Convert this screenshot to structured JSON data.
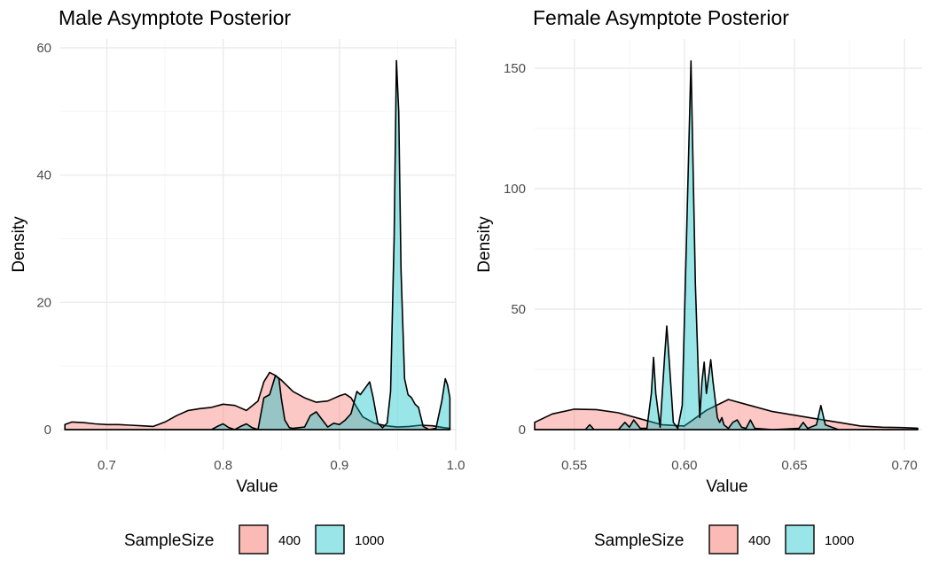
{
  "chart_data": [
    {
      "type": "area",
      "title": "Male Asymptote Posterior",
      "xlabel": "Value",
      "ylabel": "Density",
      "xlim": [
        0.66,
        1.0
      ],
      "ylim": [
        0,
        60
      ],
      "x_ticks": [
        0.7,
        0.8,
        0.9,
        1.0
      ],
      "x_tick_labels": [
        "0.7",
        "0.8",
        "0.9",
        "1.0"
      ],
      "y_ticks": [
        0,
        20,
        40,
        60
      ],
      "y_tick_labels": [
        "0",
        "20",
        "40",
        "60"
      ],
      "grid": true,
      "legend": {
        "title": "SampleSize",
        "position": "bottom"
      },
      "series": [
        {
          "name": "400",
          "color": "#F8766D",
          "x": [
            0.664,
            0.67,
            0.68,
            0.69,
            0.7,
            0.71,
            0.72,
            0.73,
            0.74,
            0.75,
            0.76,
            0.77,
            0.78,
            0.79,
            0.8,
            0.81,
            0.82,
            0.83,
            0.835,
            0.84,
            0.845,
            0.85,
            0.86,
            0.87,
            0.88,
            0.89,
            0.9,
            0.905,
            0.91,
            0.915,
            0.92,
            0.93,
            0.94,
            0.95,
            0.96,
            0.97,
            0.98,
            0.99,
            0.995
          ],
          "values": [
            0.8,
            1.2,
            1.1,
            0.9,
            0.8,
            0.8,
            0.7,
            0.6,
            0.5,
            1.2,
            2.2,
            3.0,
            3.3,
            3.5,
            4.0,
            3.8,
            3.0,
            4.5,
            7.5,
            9.0,
            8.5,
            7.8,
            6.0,
            5.0,
            4.3,
            4.5,
            5.3,
            5.6,
            5.0,
            3.5,
            2.0,
            1.0,
            0.6,
            0.4,
            0.5,
            0.7,
            0.6,
            0.3,
            0.2
          ]
        },
        {
          "name": "1000",
          "color": "#00BFC4",
          "x": [
            0.664,
            0.79,
            0.795,
            0.8,
            0.805,
            0.81,
            0.815,
            0.82,
            0.825,
            0.83,
            0.835,
            0.84,
            0.845,
            0.848,
            0.85,
            0.853,
            0.857,
            0.86,
            0.87,
            0.875,
            0.88,
            0.885,
            0.89,
            0.895,
            0.9,
            0.905,
            0.91,
            0.915,
            0.918,
            0.922,
            0.926,
            0.929,
            0.933,
            0.937,
            0.941,
            0.944,
            0.947,
            0.949,
            0.951,
            0.953,
            0.956,
            0.959,
            0.962,
            0.965,
            0.968,
            0.972,
            0.977,
            0.983,
            0.988,
            0.991,
            0.993,
            0.995
          ],
          "values": [
            0.0,
            0.0,
            0.5,
            0.9,
            0.3,
            0.0,
            0.5,
            0.9,
            0.3,
            0.0,
            5.0,
            5.5,
            8.5,
            8.0,
            5.0,
            1.5,
            0.3,
            0.2,
            0.4,
            2.2,
            2.8,
            1.6,
            0.4,
            1.0,
            0.8,
            1.5,
            2.5,
            6.0,
            5.5,
            6.5,
            7.5,
            5.0,
            1.0,
            0.3,
            1.0,
            6.0,
            30.0,
            58.0,
            50.0,
            25.0,
            8.0,
            5.5,
            5.0,
            4.0,
            3.5,
            0.5,
            0.0,
            0.2,
            4.5,
            8.0,
            7.0,
            5.0
          ]
        }
      ]
    },
    {
      "type": "area",
      "title": "Female Asymptote Posterior",
      "xlabel": "Value",
      "ylabel": "Density",
      "xlim": [
        0.532,
        0.708
      ],
      "ylim": [
        0,
        160
      ],
      "x_ticks": [
        0.55,
        0.6,
        0.65,
        0.7
      ],
      "x_tick_labels": [
        "0.55",
        "0.60",
        "0.65",
        "0.70"
      ],
      "y_ticks": [
        0,
        50,
        100,
        150
      ],
      "y_tick_labels": [
        "0",
        "50",
        "100",
        "150"
      ],
      "grid": true,
      "legend": {
        "title": "SampleSize",
        "position": "bottom"
      },
      "series": [
        {
          "name": "400",
          "color": "#F8766D",
          "x": [
            0.532,
            0.54,
            0.55,
            0.56,
            0.57,
            0.58,
            0.59,
            0.6,
            0.61,
            0.62,
            0.63,
            0.64,
            0.65,
            0.66,
            0.67,
            0.68,
            0.69,
            0.7,
            0.706
          ],
          "values": [
            3.0,
            6.5,
            8.5,
            8.3,
            7.0,
            4.5,
            2.0,
            1.5,
            8.0,
            12.5,
            10.0,
            7.5,
            6.0,
            4.5,
            3.0,
            1.5,
            1.0,
            0.8,
            0.6
          ]
        },
        {
          "name": "1000",
          "color": "#00BFC4",
          "x": [
            0.532,
            0.555,
            0.557,
            0.559,
            0.57,
            0.573,
            0.575,
            0.577,
            0.58,
            0.583,
            0.585,
            0.586,
            0.587,
            0.589,
            0.591,
            0.592,
            0.593,
            0.595,
            0.597,
            0.599,
            0.601,
            0.603,
            0.605,
            0.607,
            0.608,
            0.609,
            0.61,
            0.611,
            0.612,
            0.613,
            0.615,
            0.616,
            0.617,
            0.618,
            0.62,
            0.622,
            0.624,
            0.626,
            0.628,
            0.63,
            0.632,
            0.64,
            0.652,
            0.654,
            0.656,
            0.66,
            0.662,
            0.664,
            0.67,
            0.68,
            0.706
          ],
          "values": [
            0.0,
            0.0,
            2.0,
            0.0,
            0.0,
            3.0,
            1.0,
            4.0,
            0.5,
            0.5,
            15.0,
            30.0,
            15.0,
            1.0,
            30.0,
            43.0,
            30.0,
            3.0,
            0.5,
            10.0,
            80.0,
            153.0,
            60.0,
            5.0,
            20.0,
            28.0,
            15.0,
            22.0,
            29.0,
            20.0,
            5.0,
            3.0,
            5.0,
            2.0,
            0.5,
            3.0,
            4.0,
            1.0,
            0.5,
            4.0,
            0.5,
            0.0,
            0.5,
            3.0,
            0.5,
            2.0,
            10.0,
            2.0,
            0.0,
            0.0,
            0.0
          ]
        }
      ]
    }
  ]
}
